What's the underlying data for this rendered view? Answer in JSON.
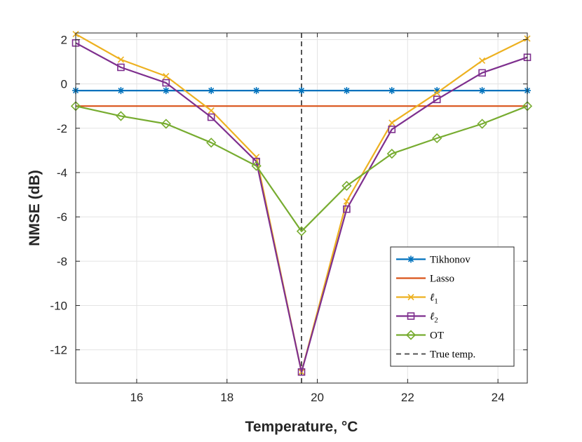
{
  "chart_data": {
    "type": "line",
    "title": "",
    "xlabel": "Temperature, °C",
    "ylabel": "NMSE (dB)",
    "xlim": [
      14.65,
      24.65
    ],
    "ylim": [
      -13.5,
      2.3
    ],
    "xticks": [
      16,
      18,
      20,
      22,
      24
    ],
    "yticks": [
      2,
      0,
      -2,
      -4,
      -6,
      -8,
      -10,
      -12
    ],
    "grid": true,
    "legend_position": "bottom-right",
    "x": [
      14.65,
      15.65,
      16.65,
      17.65,
      18.65,
      19.65,
      20.65,
      21.65,
      22.65,
      23.65,
      24.65
    ],
    "vline": {
      "x": 19.65,
      "name": "True temp.",
      "color": "#555555"
    },
    "series": [
      {
        "name": "Tikhonov",
        "color": "#0072BD",
        "marker": "asterisk",
        "values": [
          -0.3,
          -0.3,
          -0.3,
          -0.3,
          -0.3,
          -0.3,
          -0.3,
          -0.3,
          -0.3,
          -0.3,
          -0.3
        ]
      },
      {
        "name": "Lasso",
        "color": "#D95319",
        "marker": "none",
        "values": [
          -1.0,
          -1.0,
          -1.0,
          -1.0,
          -1.0,
          -1.0,
          -1.0,
          -1.0,
          -1.0,
          -1.0,
          -1.0
        ]
      },
      {
        "name": "ℓ1",
        "color": "#EDB120",
        "marker": "x",
        "values": [
          2.25,
          1.1,
          0.35,
          -1.2,
          -3.3,
          -13.0,
          -5.3,
          -1.75,
          -0.4,
          1.05,
          2.05
        ]
      },
      {
        "name": "ℓ2",
        "color": "#7E2F8E",
        "marker": "square",
        "values": [
          1.85,
          0.75,
          0.05,
          -1.5,
          -3.5,
          -13.0,
          -5.65,
          -2.05,
          -0.7,
          0.5,
          1.2
        ]
      },
      {
        "name": "OT",
        "color": "#77AC30",
        "marker": "diamond",
        "values": [
          -1.0,
          -1.45,
          -1.8,
          -2.65,
          -3.7,
          -6.65,
          -4.6,
          -3.15,
          -2.45,
          -1.8,
          -1.0
        ]
      }
    ],
    "legend": [
      {
        "label": "Tikhonov",
        "main": "Tikhonov",
        "sub": ""
      },
      {
        "label": "Lasso",
        "main": "Lasso",
        "sub": ""
      },
      {
        "label": "ℓ1",
        "main": "ℓ",
        "sub": "1"
      },
      {
        "label": "ℓ2",
        "main": "ℓ",
        "sub": "2"
      },
      {
        "label": "OT",
        "main": "OT",
        "sub": ""
      },
      {
        "label": "True temp.",
        "main": "True temp.",
        "sub": ""
      }
    ]
  }
}
